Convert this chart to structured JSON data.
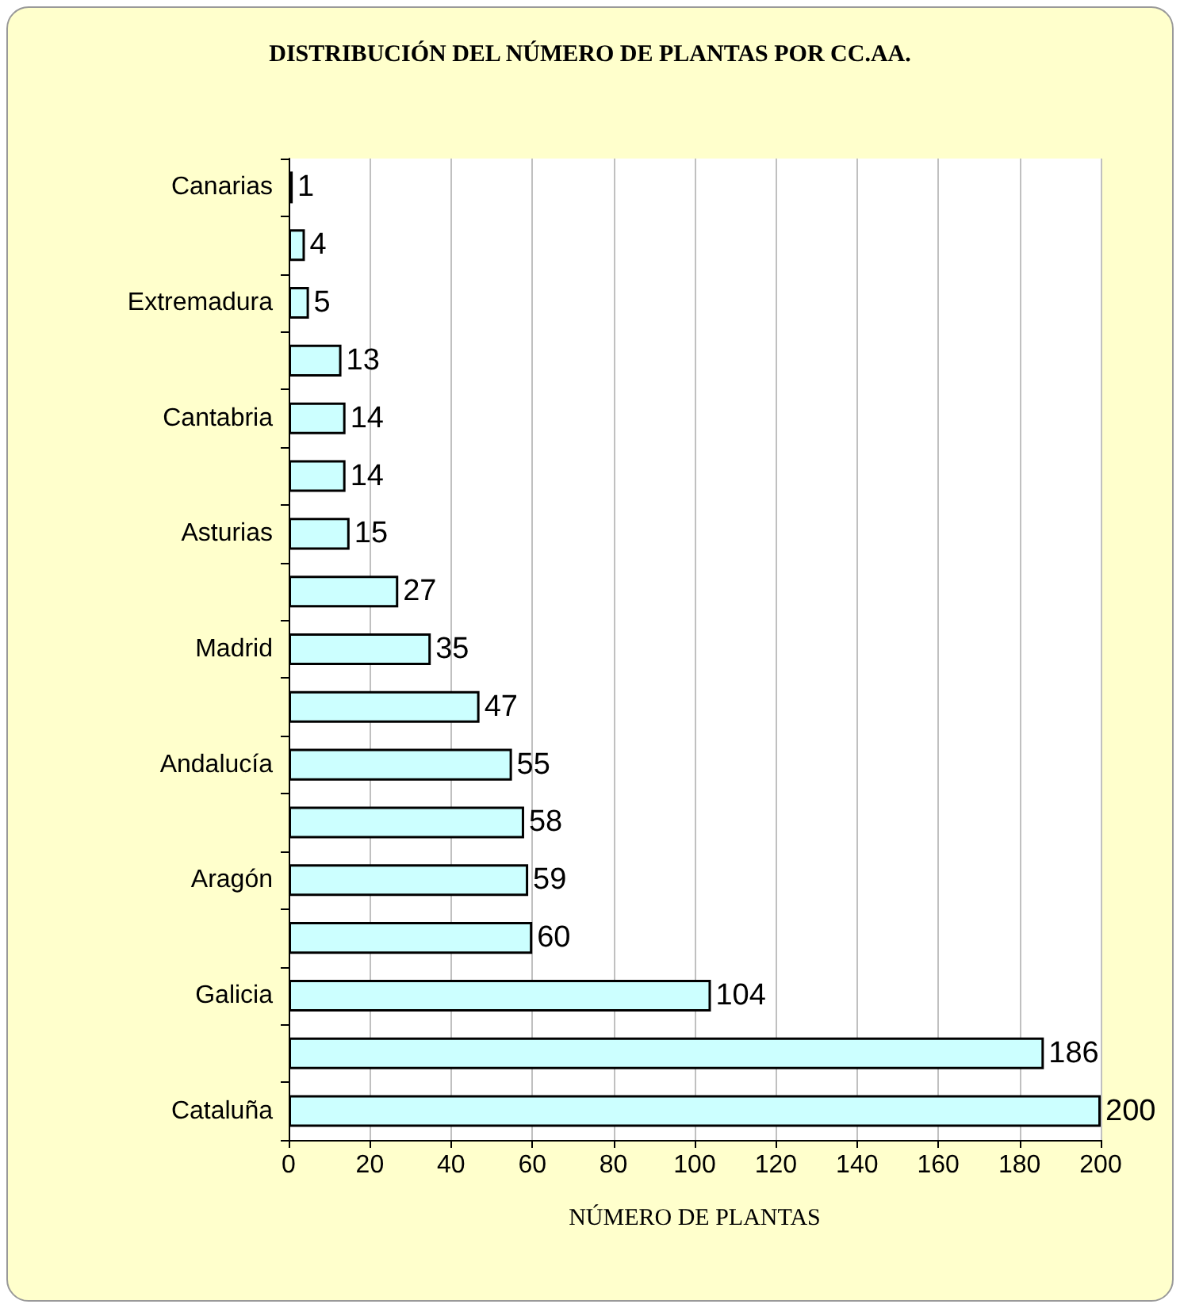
{
  "chart_data": {
    "type": "bar",
    "orientation": "horizontal",
    "title": "DISTRIBUCIÓN DEL NÚMERO DE PLANTAS POR CC.AA.",
    "xlabel": "NÚMERO DE PLANTAS",
    "categories": [
      "Canarias",
      null,
      "Extremadura",
      null,
      "Cantabria",
      null,
      "Asturias",
      null,
      "Madrid",
      null,
      "Andalucía",
      null,
      "Aragón",
      null,
      "Galicia",
      null,
      "Cataluña"
    ],
    "values": [
      1,
      4,
      5,
      13,
      14,
      14,
      15,
      27,
      35,
      47,
      55,
      58,
      59,
      60,
      104,
      186,
      200
    ],
    "color": "#ccffff",
    "xlim": [
      0,
      200
    ],
    "xticks": [
      0,
      20,
      40,
      60,
      80,
      100,
      120,
      140,
      160,
      180,
      200
    ],
    "grid": "x",
    "data_labels": true
  }
}
